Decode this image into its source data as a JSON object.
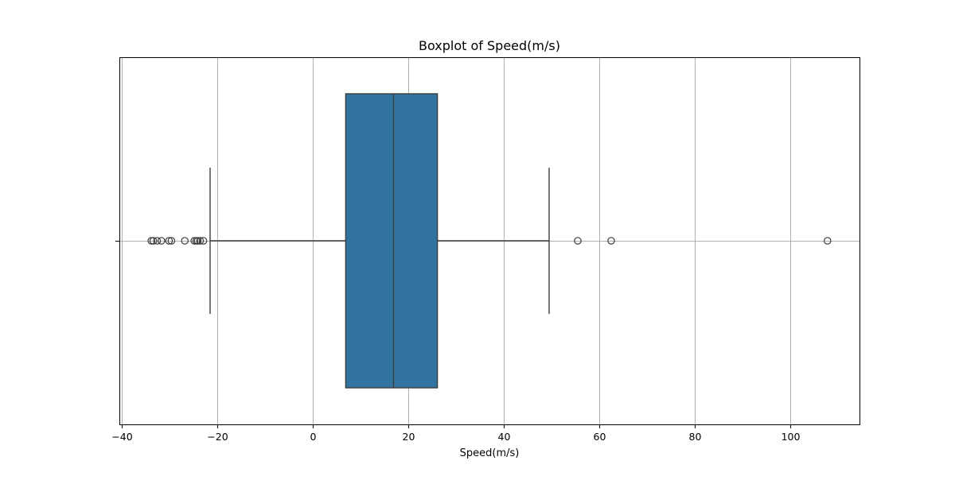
{
  "chart_data": {
    "type": "boxplot",
    "title": "Boxplot of Speed(m/s)",
    "xlabel": "Speed(m/s)",
    "ylabel": "",
    "orientation": "horizontal",
    "xlim": [
      -40.5,
      114.5
    ],
    "x_ticks": [
      -40,
      -20,
      0,
      20,
      40,
      60,
      80,
      100
    ],
    "x_tick_labels": [
      "−40",
      "−20",
      "0",
      "20",
      "40",
      "60",
      "80",
      "100"
    ],
    "grid": true,
    "box": {
      "whisker_low": -21.5,
      "q1": 6.9,
      "median": 16.9,
      "q3": 26.1,
      "whisker_high": 49.5
    },
    "outliers": [
      -33.8,
      -33.4,
      -32.6,
      -31.7,
      -30.1,
      -29.6,
      -26.8,
      -24.8,
      -24.4,
      -24.1,
      -23.6,
      -22.9,
      55.5,
      62.5,
      107.8
    ],
    "colors": {
      "box_fill": "#3274a1",
      "line": "#3d3d3d",
      "grid": "#b0b0b0",
      "axis": "#000000"
    }
  }
}
